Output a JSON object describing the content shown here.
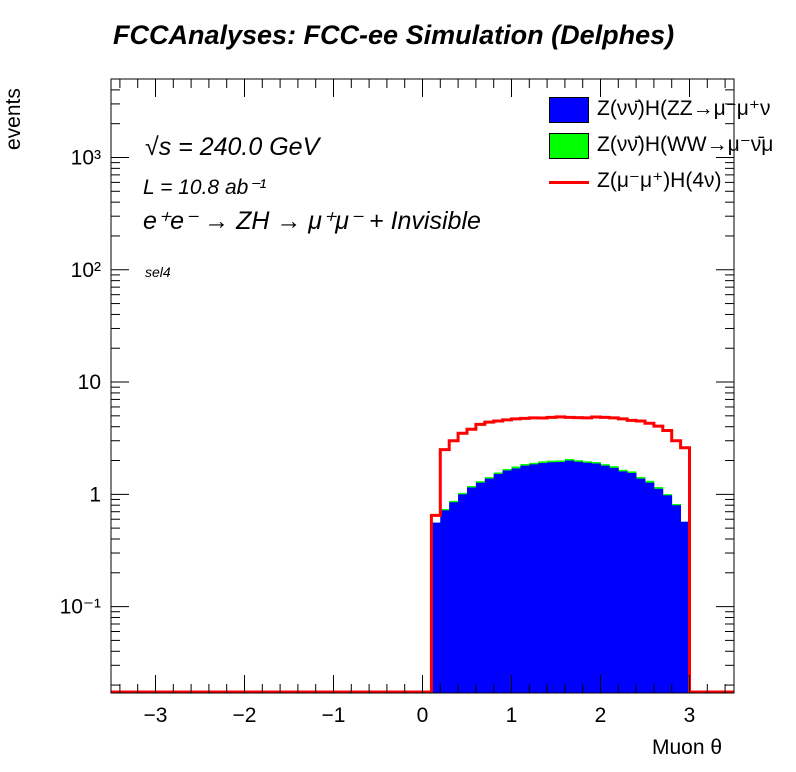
{
  "title": "FCCAnalyses: FCC-ee Simulation (Delphes)",
  "annotations": {
    "energy": "√s = 240.0 GeV",
    "lumi": "L = 10.8 ab⁻¹",
    "process": "e⁺e⁻ → ZH → μ⁺μ⁻ + Invisible",
    "selection": "sel4"
  },
  "chart_data": {
    "type": "histogram",
    "xlabel": "Muon θ",
    "ylabel": "events",
    "xlim": [
      -3.5,
      3.5
    ],
    "ylim": [
      0.017,
      5000
    ],
    "yscale": "log",
    "x_ticks": [
      "−3",
      "−2",
      "−1",
      "0",
      "1",
      "2",
      "3"
    ],
    "y_ticks": [
      "10⁻¹",
      "1",
      "10",
      "10²",
      "10³"
    ],
    "y_tick_values": [
      0.1,
      1,
      10,
      100,
      1000
    ],
    "legend_position": "top-right",
    "bin_edges": [
      0.1,
      0.2,
      0.3,
      0.4,
      0.5,
      0.6,
      0.7,
      0.8,
      0.9,
      1.0,
      1.1,
      1.2,
      1.3,
      1.4,
      1.5,
      1.6,
      1.7,
      1.8,
      1.9,
      2.0,
      2.1,
      2.2,
      2.3,
      2.4,
      2.5,
      2.6,
      2.7,
      2.8,
      2.9,
      3.0
    ],
    "series": [
      {
        "name": "Z(νν̄)H(ZZ→μ⁻μ⁺ν",
        "style": "stacked-fill",
        "color": "#0000ff",
        "values": [
          0.56,
          0.72,
          0.85,
          1.0,
          1.15,
          1.27,
          1.38,
          1.52,
          1.63,
          1.7,
          1.8,
          1.85,
          1.9,
          1.93,
          1.94,
          2.0,
          1.95,
          1.91,
          1.88,
          1.8,
          1.72,
          1.6,
          1.55,
          1.38,
          1.27,
          1.12,
          0.98,
          0.8,
          0.57
        ]
      },
      {
        "name": "Z(νν̄)H(WW→μ⁻ν̄μ",
        "style": "stacked-fill",
        "color": "#00ff00",
        "values": [
          0.0,
          0.02,
          0.025,
          0.03,
          0.035,
          0.04,
          0.042,
          0.045,
          0.05,
          0.07,
          0.062,
          0.058,
          0.063,
          0.067,
          0.065,
          0.066,
          0.063,
          0.06,
          0.058,
          0.055,
          0.06,
          0.053,
          0.05,
          0.048,
          0.05,
          0.041,
          0.025,
          0.02,
          0.0
        ]
      },
      {
        "name": "Z(μ⁻μ⁺)H(4ν)",
        "style": "line",
        "color": "#ff0000",
        "values": [
          0.65,
          2.5,
          3.0,
          3.5,
          3.8,
          4.2,
          4.4,
          4.5,
          4.6,
          4.7,
          4.75,
          4.8,
          4.78,
          4.85,
          4.9,
          4.85,
          4.82,
          4.8,
          4.88,
          4.85,
          4.8,
          4.7,
          4.55,
          4.5,
          4.3,
          4.05,
          3.7,
          3.0,
          2.6
        ]
      }
    ]
  }
}
